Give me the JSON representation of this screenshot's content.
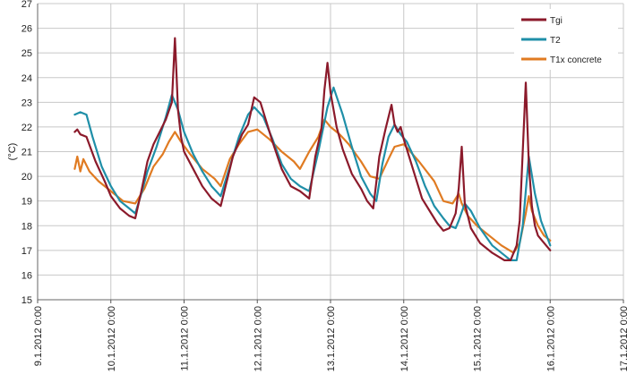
{
  "chart_data": {
    "type": "line",
    "title": "",
    "xlabel": "",
    "ylabel": "(°C)",
    "ylim": [
      15,
      27
    ],
    "yticks": [
      "15",
      "16",
      "17",
      "18",
      "19",
      "20",
      "21",
      "22",
      "23",
      "24",
      "25",
      "26",
      "27"
    ],
    "xlim": [
      "9.1.2012 0:00",
      "17.1.2012 0:00"
    ],
    "xticks": [
      "9.1.2012 0:00",
      "10.1.2012 0:00",
      "11.1.2012 0:00",
      "12.1.2012 0:00",
      "13.1.2012 0:00",
      "14.1.2012 0:00",
      "15.1.2012 0:00",
      "16.1.2012 0:00",
      "17.1.2012 0:00"
    ],
    "grid": true,
    "legend_position": "top-right",
    "series": [
      {
        "name": "Tgi",
        "color": "#8b1a2b",
        "x": [
          "9.1.2012 12:10",
          "9.1.2012 13:00",
          "9.1.2012 14:00",
          "9.1.2012 16:00",
          "9.1.2012 19:00",
          "9.1.2012 22:00",
          "10.1.2012 0:00",
          "10.1.2012 3:00",
          "10.1.2012 6:00",
          "10.1.2012 8:00",
          "10.1.2012 10:00",
          "10.1.2012 12:00",
          "10.1.2012 14:00",
          "10.1.2012 16:00",
          "10.1.2012 18:00",
          "10.1.2012 20:00",
          "10.1.2012 21:00",
          "10.1.2012 21:30",
          "10.1.2012 22:00",
          "10.1.2012 23:00",
          "11.1.2012 0:00",
          "11.1.2012 3:00",
          "11.1.2012 6:00",
          "11.1.2012 9:00",
          "11.1.2012 12:00",
          "11.1.2012 16:00",
          "11.1.2012 19:00",
          "11.1.2012 21:00",
          "11.1.2012 23:00",
          "12.1.2012 1:00",
          "12.1.2012 3:00",
          "12.1.2012 5:00",
          "12.1.2012 8:00",
          "12.1.2012 11:00",
          "12.1.2012 14:00",
          "12.1.2012 17:00",
          "12.1.2012 19:00",
          "12.1.2012 21:00",
          "12.1.2012 22:00",
          "12.1.2012 23:00",
          "13.1.2012 0:00",
          "13.1.2012 2:00",
          "13.1.2012 4:00",
          "13.1.2012 7:00",
          "13.1.2012 10:00",
          "13.1.2012 12:00",
          "13.1.2012 14:00",
          "13.1.2012 16:00",
          "13.1.2012 18:00",
          "13.1.2012 20:00",
          "13.1.2012 21:00",
          "13.1.2012 22:00",
          "13.1.2012 23:00",
          "14.1.2012 0:00",
          "14.1.2012 3:00",
          "14.1.2012 6:00",
          "14.1.2012 9:00",
          "14.1.2012 11:00",
          "14.1.2012 13:00",
          "14.1.2012 15:00",
          "14.1.2012 17:00",
          "14.1.2012 18:00",
          "14.1.2012 19:00",
          "14.1.2012 20:00",
          "14.1.2012 22:00",
          "15.1.2012 1:00",
          "15.1.2012 5:00",
          "15.1.2012 9:00",
          "15.1.2012 11:00",
          "15.1.2012 13:00",
          "15.1.2012 14:00",
          "15.1.2012 15:00",
          "15.1.2012 16:00",
          "15.1.2012 17:00",
          "15.1.2012 18:00",
          "15.1.2012 19:00",
          "15.1.2012 20:00",
          "15.1.2012 22:00",
          "16.1.2012 0:00"
        ],
        "y": [
          21.8,
          21.9,
          21.7,
          21.6,
          20.6,
          19.8,
          19.2,
          18.7,
          18.4,
          18.3,
          19.4,
          20.6,
          21.3,
          21.8,
          22.3,
          23.0,
          25.6,
          24.2,
          22.7,
          21.6,
          21.0,
          20.3,
          19.6,
          19.1,
          18.8,
          20.8,
          21.7,
          22.1,
          23.2,
          23.0,
          22.2,
          21.4,
          20.3,
          19.6,
          19.4,
          19.1,
          20.8,
          21.9,
          23.5,
          24.6,
          23.4,
          22.0,
          21.1,
          20.1,
          19.5,
          19.0,
          18.7,
          20.8,
          21.9,
          22.9,
          22.1,
          21.8,
          22.0,
          21.5,
          20.3,
          19.1,
          18.5,
          18.1,
          17.8,
          17.9,
          18.5,
          19.5,
          21.2,
          18.9,
          17.9,
          17.3,
          16.9,
          16.6,
          16.6,
          17.2,
          18.2,
          21.0,
          23.8,
          20.5,
          18.8,
          18.0,
          17.6,
          17.3,
          17.0
        ]
      },
      {
        "name": "T2",
        "color": "#1f8fa8",
        "x": [
          "9.1.2012 12:10",
          "9.1.2012 14:00",
          "9.1.2012 16:00",
          "9.1.2012 18:00",
          "9.1.2012 21:00",
          "10.1.2012 0:00",
          "10.1.2012 3:00",
          "10.1.2012 6:00",
          "10.1.2012 8:00",
          "10.1.2012 10:00",
          "10.1.2012 12:00",
          "10.1.2012 15:00",
          "10.1.2012 18:00",
          "10.1.2012 20:00",
          "10.1.2012 22:00",
          "11.1.2012 0:00",
          "11.1.2012 3:00",
          "11.1.2012 6:00",
          "11.1.2012 9:00",
          "11.1.2012 12:00",
          "11.1.2012 15:00",
          "11.1.2012 18:00",
          "11.1.2012 21:00",
          "11.1.2012 23:00",
          "12.1.2012 2:00",
          "12.1.2012 5:00",
          "12.1.2012 8:00",
          "12.1.2012 11:00",
          "12.1.2012 14:00",
          "12.1.2012 17:00",
          "12.1.2012 20:00",
          "12.1.2012 23:00",
          "13.1.2012 1:00",
          "13.1.2012 4:00",
          "13.1.2012 7:00",
          "13.1.2012 10:00",
          "13.1.2012 13:00",
          "13.1.2012 15:00",
          "13.1.2012 17:00",
          "13.1.2012 19:00",
          "13.1.2012 21:00",
          "13.1.2012 23:00",
          "14.1.2012 1:00",
          "14.1.2012 4:00",
          "14.1.2012 7:00",
          "14.1.2012 10:00",
          "14.1.2012 13:00",
          "14.1.2012 15:00",
          "14.1.2012 17:00",
          "14.1.2012 18:00",
          "14.1.2012 20:00",
          "14.1.2012 22:00",
          "15.1.2012 1:00",
          "15.1.2012 5:00",
          "15.1.2012 9:00",
          "15.1.2012 11:00",
          "15.1.2012 13:00",
          "15.1.2012 15:00",
          "15.1.2012 17:00",
          "15.1.2012 19:00",
          "15.1.2012 21:00",
          "16.1.2012 0:00"
        ],
        "y": [
          22.5,
          22.6,
          22.5,
          21.6,
          20.4,
          19.6,
          19.0,
          18.7,
          18.5,
          19.3,
          20.2,
          21.2,
          22.4,
          23.3,
          22.7,
          21.8,
          20.9,
          20.2,
          19.6,
          19.2,
          20.4,
          21.6,
          22.5,
          22.8,
          22.4,
          21.5,
          20.5,
          19.9,
          19.6,
          19.4,
          21.0,
          22.8,
          23.6,
          22.5,
          21.2,
          20.0,
          19.3,
          19.0,
          20.5,
          21.6,
          22.1,
          21.7,
          21.4,
          20.6,
          19.6,
          18.8,
          18.3,
          18.0,
          17.9,
          18.2,
          18.9,
          18.6,
          17.9,
          17.2,
          16.8,
          16.6,
          16.6,
          18.0,
          20.8,
          19.3,
          18.2,
          17.2
        ]
      },
      {
        "name": "T1x concrete",
        "color": "#e07b22",
        "x": [
          "9.1.2012 12:10",
          "9.1.2012 13:00",
          "9.1.2012 14:00",
          "9.1.2012 15:00",
          "9.1.2012 17:00",
          "9.1.2012 20:00",
          "10.1.2012 0:00",
          "10.1.2012 4:00",
          "10.1.2012 8:00",
          "10.1.2012 11:00",
          "10.1.2012 14:00",
          "10.1.2012 17:00",
          "10.1.2012 19:00",
          "10.1.2012 21:00",
          "10.1.2012 23:00",
          "11.1.2012 2:00",
          "11.1.2012 6:00",
          "11.1.2012 10:00",
          "11.1.2012 12:00",
          "11.1.2012 15:00",
          "11.1.2012 18:00",
          "11.1.2012 21:00",
          "12.1.2012 0:00",
          "12.1.2012 4:00",
          "12.1.2012 8:00",
          "12.1.2012 12:00",
          "12.1.2012 14:00",
          "12.1.2012 17:00",
          "12.1.2012 20:00",
          "12.1.2012 22:00",
          "13.1.2012 0:00",
          "13.1.2012 3:00",
          "13.1.2012 6:00",
          "13.1.2012 10:00",
          "13.1.2012 13:00",
          "13.1.2012 16:00",
          "13.1.2012 19:00",
          "13.1.2012 21:00",
          "14.1.2012 0:00",
          "14.1.2012 5:00",
          "14.1.2012 10:00",
          "14.1.2012 13:00",
          "14.1.2012 16:00",
          "14.1.2012 18:00",
          "14.1.2012 19:00",
          "14.1.2012 21:00",
          "15.1.2012 0:00",
          "15.1.2012 4:00",
          "15.1.2012 8:00",
          "15.1.2012 12:00",
          "15.1.2012 14:00",
          "15.1.2012 16:00",
          "15.1.2012 17:00",
          "15.1.2012 18:00",
          "15.1.2012 20:00",
          "15.1.2012 22:00",
          "16.1.2012 0:00"
        ],
        "y": [
          20.3,
          20.8,
          20.2,
          20.7,
          20.2,
          19.8,
          19.4,
          19.0,
          18.9,
          19.5,
          20.4,
          20.9,
          21.4,
          21.8,
          21.4,
          20.9,
          20.3,
          19.9,
          19.6,
          20.7,
          21.3,
          21.8,
          21.9,
          21.5,
          21.0,
          20.6,
          20.3,
          21.0,
          21.6,
          22.3,
          22.0,
          21.7,
          21.3,
          20.6,
          20.0,
          19.9,
          20.7,
          21.2,
          21.3,
          20.6,
          19.8,
          19.0,
          18.9,
          19.3,
          18.9,
          18.4,
          18.0,
          17.6,
          17.2,
          16.9,
          17.3,
          18.5,
          19.2,
          18.6,
          18.0,
          17.6,
          17.4
        ]
      }
    ]
  }
}
